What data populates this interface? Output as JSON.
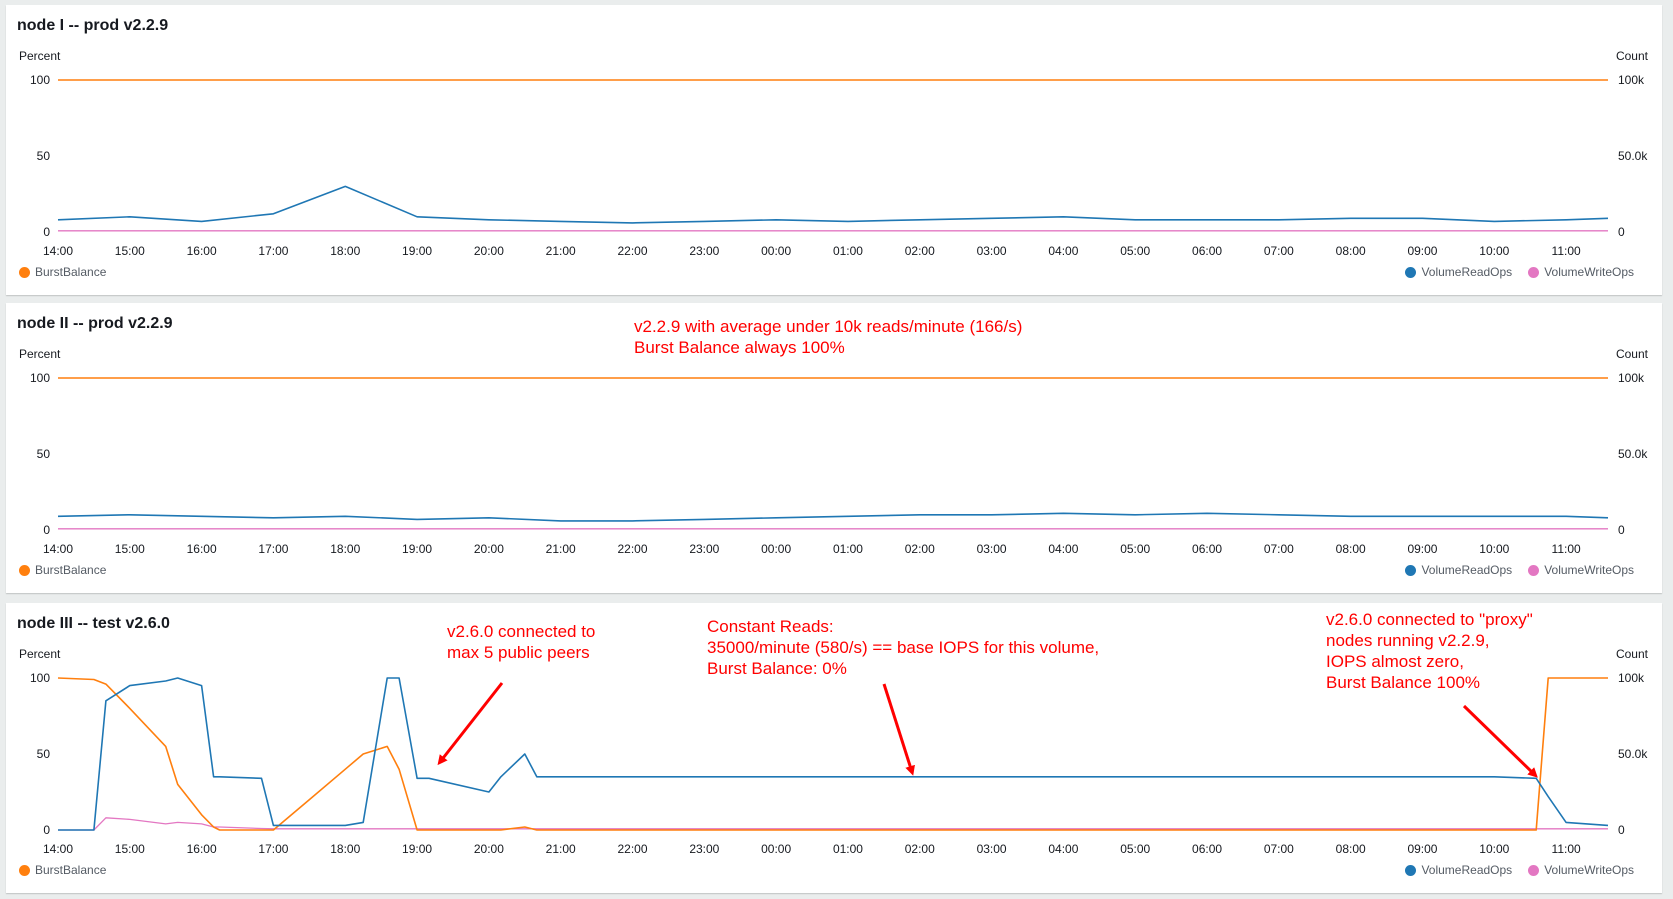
{
  "colors": {
    "burst": "#ff7f0e",
    "read": "#1f77b4",
    "write": "#e377c2",
    "annotation": "#ff0000",
    "axis_text": "#16191f",
    "legend_text": "#545b64"
  },
  "panels": [
    {
      "title": "node I -- prod v2.2.9",
      "left_unit": "Percent",
      "right_unit": "Count",
      "left_ticks": [
        "100",
        "50",
        "0"
      ],
      "right_ticks": [
        "100k",
        "50.0k",
        "0"
      ],
      "x_ticks": [
        "14:00",
        "15:00",
        "16:00",
        "17:00",
        "18:00",
        "19:00",
        "20:00",
        "21:00",
        "22:00",
        "23:00",
        "00:00",
        "01:00",
        "02:00",
        "03:00",
        "04:00",
        "05:00",
        "06:00",
        "07:00",
        "08:00",
        "09:00",
        "10:00",
        "11:00"
      ],
      "legend": {
        "burst": "BurstBalance",
        "read": "VolumeReadOps",
        "write": "VolumeWriteOps"
      }
    },
    {
      "title": "node II -- prod v2.2.9",
      "left_unit": "Percent",
      "right_unit": "Count",
      "left_ticks": [
        "100",
        "50",
        "0"
      ],
      "right_ticks": [
        "100k",
        "50.0k",
        "0"
      ],
      "x_ticks": [
        "14:00",
        "15:00",
        "16:00",
        "17:00",
        "18:00",
        "19:00",
        "20:00",
        "21:00",
        "22:00",
        "23:00",
        "00:00",
        "01:00",
        "02:00",
        "03:00",
        "04:00",
        "05:00",
        "06:00",
        "07:00",
        "08:00",
        "09:00",
        "10:00",
        "11:00"
      ],
      "legend": {
        "burst": "BurstBalance",
        "read": "VolumeReadOps",
        "write": "VolumeWriteOps"
      }
    },
    {
      "title": "node III -- test v2.6.0",
      "left_unit": "Percent",
      "right_unit": "Count",
      "left_ticks": [
        "100",
        "50",
        "0"
      ],
      "right_ticks": [
        "100k",
        "50.0k",
        "0"
      ],
      "x_ticks": [
        "14:00",
        "15:00",
        "16:00",
        "17:00",
        "18:00",
        "19:00",
        "20:00",
        "21:00",
        "22:00",
        "23:00",
        "00:00",
        "01:00",
        "02:00",
        "03:00",
        "04:00",
        "05:00",
        "06:00",
        "07:00",
        "08:00",
        "09:00",
        "10:00",
        "11:00"
      ],
      "legend": {
        "burst": "BurstBalance",
        "read": "VolumeReadOps",
        "write": "VolumeWriteOps"
      }
    }
  ],
  "annotations": [
    {
      "panel": 1,
      "text": "v2.2.9 with average under 10k reads/minute (166/s)\nBurst Balance always 100%"
    },
    {
      "panel": 2,
      "text": "v2.6.0 connected to\nmax 5 public peers"
    },
    {
      "panel": 2,
      "text": "Constant Reads:\n35000/minute (580/s) == base IOPS for this volume,\nBurst Balance: 0%"
    },
    {
      "panel": 2,
      "text": "v2.6.0 connected to \"proxy\"\nnodes running v2.2.9,\nIOPS almost zero,\nBurst Balance 100%"
    }
  ],
  "chart_data": [
    {
      "type": "line",
      "title": "node I -- prod v2.2.9",
      "x": [
        "14:00",
        "15:00",
        "16:00",
        "17:00",
        "18:00",
        "19:00",
        "20:00",
        "21:00",
        "22:00",
        "23:00",
        "00:00",
        "01:00",
        "02:00",
        "03:00",
        "04:00",
        "05:00",
        "06:00",
        "07:00",
        "08:00",
        "09:00",
        "10:00",
        "11:00",
        "11:35"
      ],
      "ylabel_left": "Percent",
      "ylim_left": [
        0,
        100
      ],
      "ylabel_right": "Count",
      "ylim_right": [
        0,
        100000
      ],
      "series": [
        {
          "name": "BurstBalance",
          "axis": "left",
          "values": [
            100,
            100,
            100,
            100,
            100,
            100,
            100,
            100,
            100,
            100,
            100,
            100,
            100,
            100,
            100,
            100,
            100,
            100,
            100,
            100,
            100,
            100,
            100
          ]
        },
        {
          "name": "VolumeReadOps",
          "axis": "right",
          "values": [
            8000,
            10000,
            7000,
            12000,
            30000,
            10000,
            8000,
            7000,
            6000,
            7000,
            8000,
            7000,
            8000,
            9000,
            10000,
            8000,
            8000,
            8000,
            9000,
            9000,
            7000,
            8000,
            9000
          ]
        },
        {
          "name": "VolumeWriteOps",
          "axis": "right",
          "values": [
            800,
            800,
            800,
            800,
            800,
            800,
            800,
            800,
            800,
            800,
            800,
            800,
            800,
            800,
            800,
            800,
            800,
            800,
            800,
            800,
            800,
            800,
            800
          ]
        }
      ],
      "legend": "bottom"
    },
    {
      "type": "line",
      "title": "node II -- prod v2.2.9",
      "x": [
        "14:00",
        "15:00",
        "16:00",
        "17:00",
        "18:00",
        "19:00",
        "20:00",
        "21:00",
        "22:00",
        "23:00",
        "00:00",
        "01:00",
        "02:00",
        "03:00",
        "04:00",
        "05:00",
        "06:00",
        "07:00",
        "08:00",
        "09:00",
        "10:00",
        "11:00",
        "11:35"
      ],
      "ylabel_left": "Percent",
      "ylim_left": [
        0,
        100
      ],
      "ylabel_right": "Count",
      "ylim_right": [
        0,
        100000
      ],
      "series": [
        {
          "name": "BurstBalance",
          "axis": "left",
          "values": [
            100,
            100,
            100,
            100,
            100,
            100,
            100,
            100,
            100,
            100,
            100,
            100,
            100,
            100,
            100,
            100,
            100,
            100,
            100,
            100,
            100,
            100,
            100
          ]
        },
        {
          "name": "VolumeReadOps",
          "axis": "right",
          "values": [
            9000,
            10000,
            9000,
            8000,
            9000,
            7000,
            8000,
            6000,
            6000,
            7000,
            8000,
            9000,
            10000,
            10000,
            11000,
            10000,
            11000,
            10000,
            9000,
            9000,
            9000,
            9000,
            8000
          ]
        },
        {
          "name": "VolumeWriteOps",
          "axis": "right",
          "values": [
            800,
            800,
            800,
            800,
            800,
            800,
            800,
            800,
            800,
            800,
            800,
            800,
            800,
            800,
            800,
            800,
            800,
            800,
            800,
            800,
            800,
            800,
            800
          ]
        }
      ],
      "legend": "bottom"
    },
    {
      "type": "line",
      "title": "node III -- test v2.6.0",
      "x": [
        "14:00",
        "14:30",
        "14:40",
        "15:00",
        "15:30",
        "15:40",
        "16:00",
        "16:10",
        "16:15",
        "16:50",
        "17:00",
        "17:30",
        "18:00",
        "18:15",
        "18:35",
        "18:45",
        "19:00",
        "19:10",
        "20:00",
        "20:10",
        "20:30",
        "20:40",
        "21:00",
        "22:00",
        "23:00",
        "00:00",
        "01:00",
        "02:00",
        "03:00",
        "03:50",
        "04:00",
        "05:00",
        "06:00",
        "07:00",
        "08:00",
        "09:00",
        "10:00",
        "10:35",
        "10:45",
        "11:00",
        "11:35"
      ],
      "ylabel_left": "Percent",
      "ylim_left": [
        0,
        100
      ],
      "ylabel_right": "Count",
      "ylim_right": [
        0,
        100000
      ],
      "series": [
        {
          "name": "BurstBalance",
          "axis": "left",
          "values": [
            100,
            99,
            96,
            80,
            55,
            30,
            10,
            2,
            0,
            0,
            0,
            20,
            40,
            50,
            55,
            40,
            0,
            0,
            0,
            0,
            2,
            0,
            0,
            0,
            0,
            0,
            0,
            0,
            0,
            0,
            0,
            0,
            0,
            0,
            0,
            0,
            0,
            0,
            100,
            100,
            100
          ]
        },
        {
          "name": "VolumeReadOps",
          "axis": "right",
          "values": [
            0,
            0,
            85000,
            95000,
            98000,
            100000,
            95000,
            35000,
            35000,
            34000,
            3000,
            3000,
            3000,
            5000,
            100000,
            100000,
            34000,
            34000,
            25000,
            35000,
            50000,
            35000,
            35000,
            35000,
            35000,
            35000,
            35000,
            35000,
            35000,
            35000,
            35000,
            35000,
            35000,
            35000,
            35000,
            35000,
            35000,
            34000,
            22000,
            5000,
            3000
          ]
        },
        {
          "name": "VolumeWriteOps",
          "axis": "right",
          "values": [
            0,
            0,
            8000,
            7000,
            4000,
            5000,
            4000,
            2000,
            2000,
            1000,
            800,
            800,
            800,
            800,
            800,
            800,
            800,
            800,
            800,
            800,
            800,
            800,
            800,
            800,
            800,
            800,
            800,
            800,
            800,
            800,
            800,
            800,
            800,
            800,
            800,
            800,
            800,
            800,
            800,
            800,
            800
          ]
        }
      ],
      "legend": "bottom"
    }
  ]
}
